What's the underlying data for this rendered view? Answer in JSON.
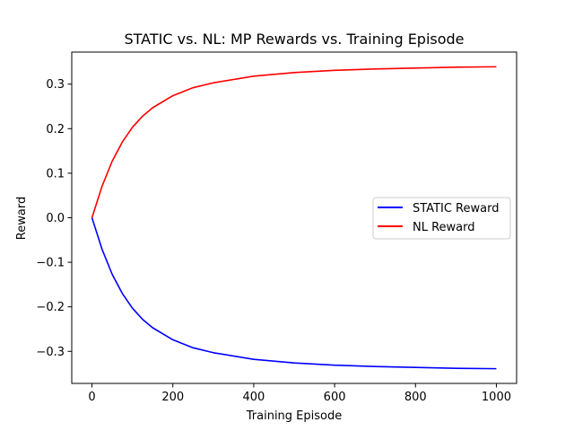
{
  "chart_data": {
    "type": "line",
    "title": "STATIC vs. NL: MP Rewards vs. Training Episode",
    "xlabel": "Training Episode",
    "ylabel": "Reward",
    "xlim": [
      -50,
      1050
    ],
    "ylim": [
      -0.372,
      0.372
    ],
    "x_ticks": [
      0,
      200,
      400,
      600,
      800,
      1000
    ],
    "x_tick_labels": [
      "0",
      "200",
      "400",
      "600",
      "800",
      "1000"
    ],
    "y_ticks": [
      -0.3,
      -0.2,
      -0.1,
      0.0,
      0.1,
      0.2,
      0.3
    ],
    "y_tick_labels": [
      "−0.3",
      "−0.2",
      "−0.1",
      "0.0",
      "0.1",
      "0.2",
      "0.3"
    ],
    "grid": false,
    "legend_position": "center-right",
    "series": [
      {
        "name": "STATIC Reward",
        "color": "#0000ff",
        "x": [
          0,
          25,
          50,
          75,
          100,
          125,
          150,
          200,
          250,
          300,
          400,
          500,
          600,
          700,
          800,
          900,
          1000
        ],
        "y": [
          0,
          -0.071,
          -0.127,
          -0.17,
          -0.203,
          -0.228,
          -0.247,
          -0.274,
          -0.292,
          -0.303,
          -0.318,
          -0.326,
          -0.331,
          -0.334,
          -0.336,
          -0.338,
          -0.339
        ]
      },
      {
        "name": "NL Reward",
        "color": "#ff0000",
        "x": [
          0,
          25,
          50,
          75,
          100,
          125,
          150,
          200,
          250,
          300,
          400,
          500,
          600,
          700,
          800,
          900,
          1000
        ],
        "y": [
          0,
          0.071,
          0.127,
          0.17,
          0.203,
          0.228,
          0.247,
          0.274,
          0.292,
          0.303,
          0.318,
          0.326,
          0.331,
          0.334,
          0.336,
          0.338,
          0.339
        ]
      }
    ]
  }
}
